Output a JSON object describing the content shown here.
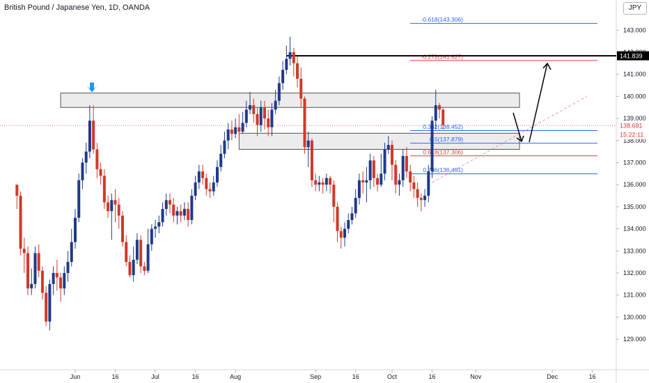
{
  "header": {
    "title": "British Pound / Japanese Yen, 1D, OANDA",
    "currency": "JPY"
  },
  "chart_data": {
    "type": "candlestick",
    "ylim": [
      128.6,
      144.2
    ],
    "y_ticks": [
      "129.000",
      "130.000",
      "131.000",
      "132.000",
      "133.000",
      "134.000",
      "135.000",
      "136.000",
      "137.000",
      "138.000",
      "139.000",
      "140.000",
      "141.000",
      "142.000",
      "143.000"
    ],
    "x_ticks": [
      {
        "label": "Jun",
        "day": 0
      },
      {
        "label": "16",
        "day": 11
      },
      {
        "label": "Jul",
        "day": 22
      },
      {
        "label": "16",
        "day": 33
      },
      {
        "label": "Aug",
        "day": 44
      },
      {
        "label": "Sep",
        "day": 66
      },
      {
        "label": "16",
        "day": 77
      },
      {
        "label": "Oct",
        "day": 87
      },
      {
        "label": "16",
        "day": 98
      },
      {
        "label": "Nov",
        "day": 110
      },
      {
        "label": "Dec",
        "day": 131
      },
      {
        "label": "16",
        "day": 142
      }
    ],
    "up_color": "#1e3a8a",
    "down_color": "#d0392b",
    "candles": [
      [
        -16,
        136.0,
        135.5,
        136.0,
        134.9
      ],
      [
        -15,
        135.5,
        133.1,
        135.7,
        132.8
      ],
      [
        -14,
        133.1,
        132.9,
        133.6,
        132.0
      ],
      [
        -13,
        132.9,
        131.3,
        133.2,
        131.0
      ],
      [
        -12,
        131.3,
        131.5,
        132.2,
        131.0
      ],
      [
        -11,
        131.5,
        132.9,
        133.2,
        131.3
      ],
      [
        -10,
        132.9,
        132.1,
        133.3,
        131.8
      ],
      [
        -9,
        132.1,
        131.1,
        132.3,
        130.8
      ],
      [
        -8,
        131.1,
        129.8,
        131.4,
        129.6
      ],
      [
        -7,
        129.8,
        131.5,
        131.7,
        129.4
      ],
      [
        -6,
        131.5,
        132.0,
        132.3,
        131.0
      ],
      [
        -5,
        132.0,
        131.8,
        132.6,
        131.2
      ],
      [
        -4,
        131.8,
        131.3,
        132.0,
        130.7
      ],
      [
        -3,
        131.3,
        132.0,
        132.3,
        131.0
      ],
      [
        -2,
        132.0,
        132.5,
        133.0,
        131.6
      ],
      [
        -1,
        132.5,
        133.4,
        134.0,
        132.3
      ],
      [
        0,
        133.4,
        134.5,
        134.9,
        133.1
      ],
      [
        1,
        134.5,
        136.2,
        136.5,
        134.3
      ],
      [
        2,
        136.2,
        137.0,
        137.2,
        135.8
      ],
      [
        3,
        137.0,
        137.5,
        137.9,
        136.5
      ],
      [
        4,
        137.5,
        138.9,
        139.6,
        137.2
      ],
      [
        5,
        138.9,
        137.6,
        139.6,
        137.4
      ],
      [
        6,
        137.6,
        136.7,
        137.9,
        136.3
      ],
      [
        7,
        136.7,
        136.4,
        137.0,
        136.0
      ],
      [
        8,
        136.4,
        135.2,
        136.7,
        134.9
      ],
      [
        9,
        135.2,
        134.8,
        135.5,
        134.5
      ],
      [
        10,
        134.8,
        135.3,
        135.6,
        133.5
      ],
      [
        11,
        135.3,
        135.1,
        135.8,
        134.3
      ],
      [
        12,
        135.1,
        134.6,
        135.4,
        134.0
      ],
      [
        13,
        134.6,
        133.4,
        134.8,
        133.2
      ],
      [
        14,
        133.4,
        132.5,
        133.7,
        132.3
      ],
      [
        15,
        132.5,
        131.9,
        132.8,
        131.8
      ],
      [
        16,
        131.9,
        132.6,
        133.2,
        131.6
      ],
      [
        17,
        132.6,
        133.5,
        133.8,
        132.4
      ],
      [
        18,
        133.5,
        132.3,
        133.7,
        132.0
      ],
      [
        19,
        132.3,
        132.1,
        132.5,
        131.9
      ],
      [
        20,
        132.1,
        133.3,
        134.0,
        132.0
      ],
      [
        21,
        133.3,
        134.0,
        134.2,
        133.0
      ],
      [
        22,
        134.0,
        134.1,
        134.4,
        133.6
      ],
      [
        23,
        134.1,
        134.3,
        134.6,
        133.8
      ],
      [
        24,
        134.3,
        134.9,
        135.2,
        134.1
      ],
      [
        25,
        134.9,
        135.3,
        135.6,
        134.6
      ],
      [
        26,
        135.3,
        135.1,
        135.6,
        134.7
      ],
      [
        27,
        135.1,
        134.6,
        135.4,
        134.3
      ],
      [
        28,
        134.6,
        134.8,
        135.0,
        134.2
      ],
      [
        29,
        134.8,
        134.6,
        135.1,
        134.3
      ],
      [
        30,
        134.6,
        134.9,
        135.2,
        134.4
      ],
      [
        31,
        134.9,
        134.4,
        135.2,
        134.1
      ],
      [
        32,
        134.4,
        135.5,
        135.8,
        134.2
      ],
      [
        33,
        135.5,
        136.1,
        136.4,
        135.3
      ],
      [
        34,
        136.1,
        136.6,
        136.9,
        135.8
      ],
      [
        35,
        136.6,
        136.3,
        136.9,
        136.0
      ],
      [
        36,
        136.3,
        135.8,
        136.5,
        135.5
      ],
      [
        37,
        135.8,
        135.7,
        136.1,
        135.4
      ],
      [
        38,
        135.7,
        136.1,
        136.4,
        135.5
      ],
      [
        39,
        136.1,
        136.8,
        137.1,
        135.9
      ],
      [
        40,
        136.8,
        137.4,
        137.8,
        136.6
      ],
      [
        41,
        137.4,
        138.0,
        138.4,
        137.2
      ],
      [
        42,
        138.0,
        138.5,
        138.8,
        137.6
      ],
      [
        43,
        138.5,
        138.3,
        138.9,
        138.0
      ],
      [
        44,
        138.3,
        138.6,
        139.0,
        138.1
      ],
      [
        45,
        138.6,
        138.4,
        139.2,
        138.1
      ],
      [
        46,
        138.4,
        138.8,
        139.3,
        138.3
      ],
      [
        47,
        138.8,
        139.4,
        139.8,
        138.6
      ],
      [
        48,
        139.4,
        139.6,
        140.2,
        139.2
      ],
      [
        49,
        139.6,
        139.2,
        139.9,
        138.8
      ],
      [
        50,
        139.2,
        138.7,
        139.5,
        138.2
      ],
      [
        51,
        138.7,
        139.5,
        139.8,
        138.4
      ],
      [
        52,
        139.5,
        139.0,
        139.8,
        138.5
      ],
      [
        53,
        139.0,
        138.6,
        139.4,
        138.2
      ],
      [
        54,
        138.6,
        139.4,
        139.7,
        138.2
      ],
      [
        55,
        139.4,
        139.8,
        140.3,
        139.2
      ],
      [
        56,
        139.8,
        140.6,
        140.9,
        139.6
      ],
      [
        57,
        140.6,
        141.2,
        141.6,
        140.3
      ],
      [
        58,
        141.2,
        141.7,
        142.3,
        141.0
      ],
      [
        59,
        141.7,
        142.0,
        142.7,
        141.4
      ],
      [
        60,
        142.0,
        141.5,
        142.2,
        140.9
      ],
      [
        61,
        141.5,
        140.8,
        141.8,
        140.4
      ],
      [
        62,
        140.8,
        139.9,
        141.3,
        139.5
      ],
      [
        63,
        139.9,
        137.7,
        140.0,
        137.4
      ],
      [
        64,
        137.7,
        138.0,
        138.4,
        136.8
      ],
      [
        65,
        138.0,
        136.2,
        138.1,
        135.9
      ],
      [
        66,
        136.2,
        136.0,
        136.5,
        135.7
      ],
      [
        67,
        136.0,
        136.1,
        136.4,
        135.7
      ],
      [
        68,
        136.1,
        136.0,
        136.3,
        135.6
      ],
      [
        69,
        136.0,
        136.3,
        136.5,
        135.7
      ],
      [
        70,
        136.3,
        136.0,
        136.4,
        135.6
      ],
      [
        71,
        136.0,
        135.0,
        136.2,
        134.3
      ],
      [
        72,
        135.0,
        133.9,
        135.2,
        133.4
      ],
      [
        73,
        133.9,
        133.6,
        134.1,
        133.1
      ],
      [
        74,
        133.6,
        134.0,
        134.3,
        133.2
      ],
      [
        75,
        134.0,
        134.4,
        134.7,
        133.8
      ],
      [
        76,
        134.4,
        134.7,
        135.0,
        134.2
      ],
      [
        77,
        134.7,
        135.4,
        135.8,
        134.5
      ],
      [
        78,
        135.4,
        136.2,
        136.5,
        135.1
      ],
      [
        79,
        136.2,
        136.1,
        136.6,
        135.6
      ],
      [
        80,
        136.1,
        136.2,
        136.8,
        135.2
      ],
      [
        81,
        136.2,
        137.1,
        137.4,
        135.8
      ],
      [
        82,
        137.1,
        136.3,
        137.3,
        135.9
      ],
      [
        83,
        136.3,
        136.0,
        136.5,
        135.7
      ],
      [
        84,
        136.0,
        136.5,
        137.4,
        135.9
      ],
      [
        85,
        136.5,
        137.6,
        137.9,
        136.2
      ],
      [
        86,
        137.6,
        137.8,
        138.2,
        137.4
      ],
      [
        87,
        137.8,
        136.9,
        138.0,
        136.2
      ],
      [
        88,
        136.9,
        136.0,
        137.1,
        135.6
      ],
      [
        89,
        136.0,
        136.2,
        136.5,
        135.5
      ],
      [
        90,
        136.2,
        137.3,
        137.6,
        135.9
      ],
      [
        91,
        137.3,
        136.6,
        137.7,
        136.3
      ],
      [
        92,
        136.6,
        136.1,
        136.9,
        135.7
      ],
      [
        93,
        136.1,
        135.8,
        136.4,
        135.4
      ],
      [
        94,
        135.8,
        135.4,
        136.1,
        135.0
      ],
      [
        95,
        135.4,
        135.3,
        135.6,
        134.8
      ],
      [
        96,
        135.3,
        135.5,
        135.8,
        135.0
      ],
      [
        97,
        135.5,
        136.6,
        136.9,
        135.2
      ],
      [
        98,
        136.6,
        138.9,
        139.1,
        136.3
      ],
      [
        99,
        138.9,
        139.6,
        140.3,
        138.5
      ],
      [
        100,
        139.6,
        139.4,
        139.7,
        139.0
      ],
      [
        101,
        139.4,
        138.7,
        139.5,
        138.5
      ]
    ],
    "levels": [
      {
        "label": "-0.618(143.306)",
        "value": 143.306,
        "color": "#2962ff"
      },
      {
        "label": "-0.272(141.627)",
        "value": 141.627,
        "color": "#e53935"
      },
      {
        "label": "0.382(138.452)",
        "value": 138.452,
        "color": "#2962ff"
      },
      {
        "label": "0.5(137.879)",
        "value": 137.879,
        "color": "#2962ff"
      },
      {
        "label": "0.618(137.306)",
        "value": 137.306,
        "color": "#e53935"
      },
      {
        "label": "0.786(136.491)",
        "value": 136.491,
        "color": "#2962ff"
      }
    ],
    "resistance_line": {
      "value": 141.839,
      "label": "141.839"
    },
    "last_price": {
      "value": 138.681,
      "label": "138.681",
      "countdown": "15:22:11"
    },
    "zones": [
      {
        "top": 140.15,
        "bottom": 139.5,
        "from_day": -4,
        "to_day": 122
      },
      {
        "top": 138.33,
        "bottom": 137.6,
        "from_day": 45,
        "to_day": 122
      }
    ]
  }
}
